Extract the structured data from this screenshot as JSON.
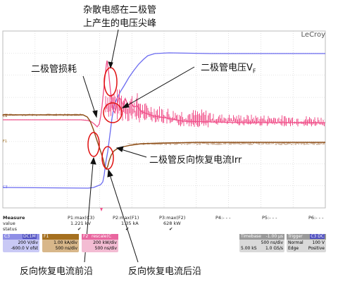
{
  "annotations": {
    "top_line1": "杂散电感在二极管",
    "top_line2": "上产生的电压尖峰",
    "diode_loss": "二极管损耗",
    "diode_voltage": "二极管电压V",
    "diode_voltage_sub": "F",
    "reverse_current": "二极管反向恢复电流Irr",
    "leading_edge": "反向恢复电流前沿",
    "trailing_edge": "反向恢复电流后沿"
  },
  "scope": {
    "brand": "LeCroy",
    "ch_markers": {
      "c2": "C2",
      "f1": "F1",
      "c3": "C3"
    },
    "measure_labels": {
      "title": "Measure",
      "value": "value",
      "status": "status"
    },
    "measurements": [
      {
        "name": "P1:max(C3)",
        "value": "1.221 kV",
        "status": "✔"
      },
      {
        "name": "P2:max(F1)",
        "value": "1.35 kA",
        "status": "✔"
      },
      {
        "name": "P3:max(F2)",
        "value": "628 kW",
        "status": "✔"
      },
      {
        "name": "P4:- - -",
        "value": "",
        "status": ""
      },
      {
        "name": "P5:- - -",
        "value": "",
        "status": ""
      },
      {
        "name": "P6:- - -",
        "value": "",
        "status": ""
      }
    ],
    "channels": [
      {
        "id": "C3",
        "tag": "DC1M",
        "line1": "200 V/div",
        "line2": "-600.0 V ofst",
        "color": "#8f8fe6"
      },
      {
        "id": "F1",
        "tag": "",
        "line1": "1.00 kA/div",
        "line2": "500 ns/div",
        "color": "#a5701f"
      },
      {
        "id": "F2",
        "tag": "rescale(C",
        "line1": "200 kW/div",
        "line2": "500 ns/div",
        "color": "#e9669f"
      }
    ],
    "timebase": {
      "label": "Timebase",
      "value": "-1.00 μs",
      "line1": "500 ns/div",
      "line2a": "5.00 kS",
      "line2b": "1.0 GS/s"
    },
    "trigger": {
      "label": "Trigger",
      "tag": "C3 DC",
      "line1a": "Normal",
      "line1b": "100 V",
      "line2a": "Edge",
      "line2b": "Positive"
    },
    "colors": {
      "voltage": "#6b6bf0",
      "current": "#8b4a12",
      "power": "#f0508a",
      "circle": "#e01010"
    }
  }
}
